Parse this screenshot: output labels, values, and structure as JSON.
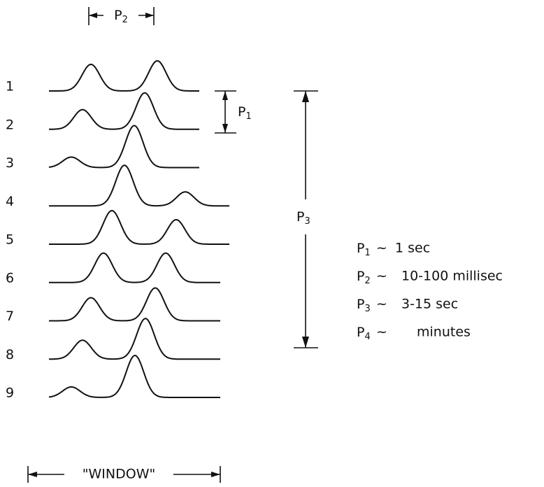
{
  "rows": [
    "1",
    "2",
    "3",
    "4",
    "5",
    "6",
    "7",
    "8",
    "9"
  ],
  "dimensions": {
    "p1": {
      "symbol": "P",
      "index": "1"
    },
    "p2": {
      "symbol": "P",
      "index": "2"
    },
    "p3": {
      "symbol": "P",
      "index": "3"
    }
  },
  "legend": [
    {
      "symbol": "P",
      "index": "1",
      "relation": "~",
      "value": "1 sec"
    },
    {
      "symbol": "P",
      "index": "2",
      "relation": "~",
      "value": "10-100 millisec"
    },
    {
      "symbol": "P",
      "index": "3",
      "relation": "~",
      "value": "3-15 sec"
    },
    {
      "symbol": "P",
      "index": "4",
      "relation": "~",
      "value": "minutes"
    }
  ],
  "window_label": "\"WINDOW\""
}
